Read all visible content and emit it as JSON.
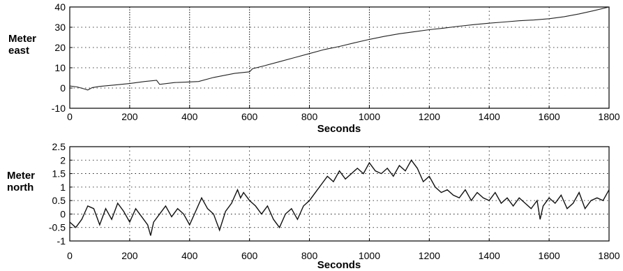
{
  "chart_data": [
    {
      "type": "line",
      "title": "",
      "xlabel": "Seconds",
      "ylabel": "Meter east",
      "xlim": [
        0,
        1800
      ],
      "ylim": [
        -10,
        40
      ],
      "xticks": [
        0,
        200,
        400,
        600,
        800,
        1000,
        1200,
        1400,
        1600,
        1800
      ],
      "yticks": [
        -10,
        0,
        10,
        20,
        30,
        40
      ],
      "grid": true,
      "series": [
        {
          "x": [
            0,
            25,
            50,
            60,
            75,
            100,
            150,
            200,
            250,
            290,
            300,
            350,
            400,
            430,
            480,
            550,
            600,
            610,
            650,
            700,
            750,
            800,
            850,
            900,
            950,
            1000,
            1050,
            1100,
            1150,
            1200,
            1250,
            1300,
            1350,
            1400,
            1450,
            1500,
            1550,
            1600,
            1650,
            1700,
            1750,
            1800
          ],
          "y": [
            1,
            0.5,
            -0.5,
            -1,
            0.2,
            0.8,
            1.5,
            2.2,
            3.2,
            3.8,
            1.8,
            2.7,
            3.0,
            3.2,
            5.2,
            7.2,
            8.0,
            9.5,
            11.0,
            13.0,
            15.0,
            17.0,
            19.0,
            20.5,
            22.3,
            24.0,
            25.5,
            26.8,
            27.8,
            28.8,
            29.6,
            30.5,
            31.3,
            32.0,
            32.6,
            33.2,
            33.6,
            34.2,
            35.2,
            36.6,
            38.2,
            40.0
          ]
        }
      ]
    },
    {
      "type": "line",
      "title": "",
      "xlabel": "Seconds",
      "ylabel": "Meter north",
      "xlim": [
        0,
        1800
      ],
      "ylim": [
        -1,
        2.5
      ],
      "xticks": [
        0,
        200,
        400,
        600,
        800,
        1000,
        1200,
        1400,
        1600,
        1800
      ],
      "yticks": [
        -1,
        -0.5,
        0,
        0.5,
        1,
        1.5,
        2,
        2.5
      ],
      "grid": true,
      "series": [
        {
          "x": [
            0,
            20,
            40,
            60,
            80,
            100,
            120,
            140,
            160,
            180,
            200,
            220,
            240,
            260,
            270,
            280,
            300,
            320,
            340,
            360,
            380,
            400,
            420,
            440,
            460,
            480,
            500,
            520,
            540,
            560,
            570,
            580,
            600,
            620,
            640,
            660,
            680,
            700,
            720,
            740,
            760,
            780,
            800,
            820,
            840,
            860,
            880,
            900,
            920,
            940,
            960,
            980,
            1000,
            1020,
            1040,
            1060,
            1080,
            1100,
            1120,
            1140,
            1160,
            1180,
            1200,
            1220,
            1240,
            1260,
            1280,
            1300,
            1320,
            1340,
            1360,
            1380,
            1400,
            1420,
            1440,
            1460,
            1480,
            1500,
            1520,
            1540,
            1560,
            1570,
            1580,
            1600,
            1620,
            1640,
            1660,
            1680,
            1700,
            1720,
            1740,
            1760,
            1780,
            1800
          ],
          "y": [
            -0.3,
            -0.5,
            -0.2,
            0.3,
            0.2,
            -0.4,
            0.2,
            -0.2,
            0.4,
            0.1,
            -0.3,
            0.2,
            -0.1,
            -0.4,
            -0.8,
            -0.3,
            0.0,
            0.3,
            -0.1,
            0.2,
            0.0,
            -0.4,
            0.1,
            0.6,
            0.2,
            0.0,
            -0.6,
            0.1,
            0.4,
            0.9,
            0.6,
            0.8,
            0.5,
            0.3,
            0.0,
            0.3,
            -0.2,
            -0.5,
            0.0,
            0.2,
            -0.2,
            0.3,
            0.5,
            0.8,
            1.1,
            1.4,
            1.2,
            1.6,
            1.3,
            1.5,
            1.7,
            1.5,
            1.9,
            1.6,
            1.5,
            1.7,
            1.4,
            1.8,
            1.6,
            2.0,
            1.7,
            1.2,
            1.4,
            1.0,
            0.8,
            0.9,
            0.7,
            0.6,
            0.9,
            0.5,
            0.8,
            0.6,
            0.5,
            0.8,
            0.4,
            0.6,
            0.3,
            0.6,
            0.4,
            0.2,
            0.5,
            -0.2,
            0.3,
            0.6,
            0.4,
            0.7,
            0.2,
            0.4,
            0.8,
            0.2,
            0.5,
            0.6,
            0.5,
            0.9
          ]
        }
      ]
    }
  ]
}
